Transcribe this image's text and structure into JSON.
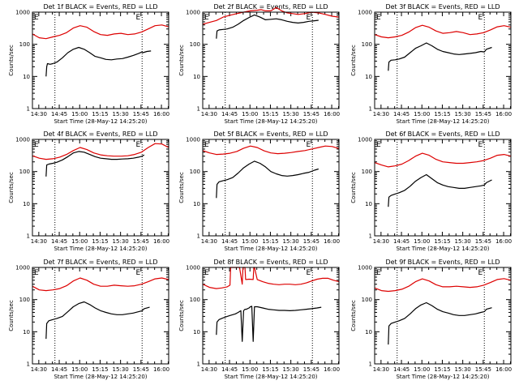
{
  "colors": {
    "events": "#000000",
    "lld": "#dd0000",
    "background": "#ffffff"
  },
  "common": {
    "x_ticks": [
      "14:30",
      "14:45",
      "15:00",
      "15:15",
      "15:30",
      "15:45",
      "16:00"
    ],
    "y_ticks": [
      "1",
      "10",
      "100",
      "1000"
    ],
    "ylabel": "Counts/sec",
    "xlabel": "Start Time (28-May-12 14:25:20)",
    "marker_label": "E"
  },
  "chart_data": [
    {
      "type": "line",
      "title": "Det 1f BLACK = Events, RED = LLD",
      "x_unit": "minutes after 14:25:20",
      "xlim": [
        0,
        100
      ],
      "ylim": [
        1,
        1000
      ],
      "yscale": "log",
      "markers_x": [
        16.5,
        80.5
      ],
      "series": [
        {
          "name": "LLD",
          "color": "#dd0000",
          "x": [
            0,
            5,
            10,
            15,
            20,
            25,
            30,
            35,
            40,
            45,
            50,
            55,
            60,
            65,
            70,
            75,
            80,
            85,
            90,
            95,
            100
          ],
          "y": [
            210,
            160,
            150,
            170,
            190,
            230,
            320,
            380,
            340,
            250,
            200,
            190,
            210,
            220,
            200,
            210,
            240,
            300,
            380,
            400,
            350
          ]
        },
        {
          "name": "Events",
          "color": "#000000",
          "x": [
            10,
            10.5,
            11,
            13,
            15,
            18,
            22,
            26,
            30,
            34,
            38,
            42,
            46,
            50,
            54,
            58,
            62,
            66,
            70,
            74,
            78,
            80.5,
            81,
            84,
            87
          ],
          "y": [
            10,
            20,
            25,
            24,
            25,
            28,
            38,
            55,
            70,
            80,
            70,
            55,
            42,
            38,
            34,
            33,
            35,
            36,
            40,
            45,
            52,
            58,
            55,
            60,
            62
          ]
        }
      ]
    },
    {
      "type": "line",
      "title": "Det 2f BLACK = Events, RED = LLD",
      "x_unit": "minutes after 14:25:20",
      "xlim": [
        0,
        100
      ],
      "ylim": [
        1,
        1000
      ],
      "yscale": "log",
      "markers_x": [
        16.5,
        80.5
      ],
      "series": [
        {
          "name": "LLD",
          "color": "#dd0000",
          "x": [
            0,
            5,
            10,
            15,
            20,
            25,
            30,
            35,
            40,
            43,
            46,
            50,
            54,
            58,
            62,
            66,
            70,
            75,
            80,
            85,
            90,
            95,
            100
          ],
          "y": [
            420,
            480,
            550,
            700,
            800,
            900,
            1000,
            1100,
            1150,
            1200,
            1100,
            1100,
            1400,
            1100,
            950,
            900,
            850,
            900,
            1000,
            950,
            850,
            750,
            700
          ]
        },
        {
          "name": "Events",
          "color": "#000000",
          "x": [
            10,
            10.5,
            12,
            15,
            18,
            22,
            26,
            30,
            34,
            38,
            42,
            46,
            50,
            54,
            58,
            62,
            66,
            70,
            74,
            78,
            82,
            85
          ],
          "y": [
            150,
            260,
            280,
            290,
            300,
            340,
            420,
            550,
            680,
            820,
            700,
            580,
            600,
            620,
            580,
            520,
            480,
            460,
            480,
            520,
            540,
            560
          ]
        }
      ]
    },
    {
      "type": "line",
      "title": "Det 3f BLACK = Events, RED = LLD",
      "x_unit": "minutes after 14:25:20",
      "xlim": [
        0,
        100
      ],
      "ylim": [
        1,
        1000
      ],
      "yscale": "log",
      "markers_x": [
        16.5,
        80.5
      ],
      "series": [
        {
          "name": "LLD",
          "color": "#dd0000",
          "x": [
            0,
            5,
            10,
            15,
            20,
            25,
            30,
            35,
            40,
            45,
            50,
            55,
            60,
            65,
            70,
            75,
            80,
            85,
            90,
            95,
            100
          ],
          "y": [
            200,
            170,
            160,
            170,
            190,
            240,
            330,
            390,
            340,
            260,
            220,
            230,
            250,
            230,
            200,
            210,
            230,
            280,
            350,
            380,
            340
          ]
        },
        {
          "name": "Events",
          "color": "#000000",
          "x": [
            10,
            10.5,
            12,
            15,
            18,
            22,
            26,
            30,
            34,
            38,
            42,
            46,
            50,
            54,
            58,
            62,
            66,
            70,
            74,
            78,
            80.5,
            82,
            86
          ],
          "y": [
            15,
            28,
            32,
            33,
            35,
            40,
            55,
            75,
            90,
            110,
            90,
            70,
            60,
            55,
            50,
            48,
            50,
            52,
            55,
            60,
            58,
            70,
            80
          ]
        }
      ]
    },
    {
      "type": "line",
      "title": "Det 4f BLACK = Events, RED = LLD",
      "x_unit": "minutes after 14:25:20",
      "xlim": [
        0,
        100
      ],
      "ylim": [
        1,
        1000
      ],
      "yscale": "log",
      "markers_x": [
        16.5,
        80.5
      ],
      "series": [
        {
          "name": "LLD",
          "color": "#dd0000",
          "x": [
            0,
            5,
            10,
            15,
            20,
            25,
            30,
            35,
            40,
            45,
            50,
            55,
            60,
            65,
            70,
            75,
            80,
            85,
            90,
            95,
            100
          ],
          "y": [
            310,
            260,
            240,
            250,
            280,
            340,
            450,
            560,
            480,
            380,
            330,
            310,
            300,
            300,
            310,
            340,
            400,
            560,
            740,
            720,
            560
          ]
        },
        {
          "name": "Events",
          "color": "#000000",
          "x": [
            10,
            10.5,
            12,
            15,
            18,
            22,
            26,
            30,
            34,
            38,
            42,
            46,
            50,
            54,
            58,
            62,
            66,
            70,
            74,
            78,
            80.5,
            82
          ],
          "y": [
            70,
            160,
            170,
            180,
            195,
            230,
            290,
            380,
            420,
            400,
            340,
            290,
            260,
            250,
            240,
            240,
            245,
            250,
            260,
            280,
            300,
            330
          ]
        }
      ]
    },
    {
      "type": "line",
      "title": "Det 5f BLACK = Events, RED = LLD",
      "x_unit": "minutes after 14:25:20",
      "xlim": [
        0,
        100
      ],
      "ylim": [
        1,
        1000
      ],
      "yscale": "log",
      "markers_x": [
        16.5,
        80.5
      ],
      "series": [
        {
          "name": "LLD",
          "color": "#dd0000",
          "x": [
            0,
            5,
            10,
            15,
            20,
            25,
            30,
            35,
            40,
            45,
            50,
            55,
            60,
            65,
            70,
            75,
            80,
            85,
            90,
            95,
            100
          ],
          "y": [
            450,
            380,
            340,
            350,
            370,
            420,
            530,
            620,
            560,
            440,
            380,
            360,
            370,
            390,
            420,
            450,
            500,
            560,
            620,
            600,
            520
          ]
        },
        {
          "name": "Events",
          "color": "#000000",
          "x": [
            10,
            10.5,
            12,
            15,
            18,
            22,
            26,
            30,
            34,
            38,
            42,
            46,
            50,
            54,
            58,
            62,
            66,
            70,
            74,
            78,
            82,
            85
          ],
          "y": [
            15,
            40,
            48,
            52,
            56,
            65,
            90,
            130,
            170,
            210,
            180,
            140,
            100,
            85,
            75,
            72,
            75,
            80,
            88,
            95,
            110,
            120
          ]
        }
      ]
    },
    {
      "type": "line",
      "title": "Det 6f BLACK = Events, RED = LLD",
      "x_unit": "minutes after 14:25:20",
      "xlim": [
        0,
        100
      ],
      "ylim": [
        1,
        1000
      ],
      "yscale": "log",
      "markers_x": [
        16.5,
        80.5
      ],
      "series": [
        {
          "name": "LLD",
          "color": "#dd0000",
          "x": [
            0,
            5,
            10,
            15,
            20,
            25,
            30,
            35,
            40,
            45,
            50,
            55,
            60,
            65,
            70,
            75,
            80,
            85,
            90,
            95,
            100
          ],
          "y": [
            190,
            160,
            140,
            150,
            170,
            220,
            300,
            370,
            320,
            240,
            200,
            190,
            180,
            180,
            190,
            200,
            220,
            260,
            320,
            340,
            300
          ]
        },
        {
          "name": "Events",
          "color": "#000000",
          "x": [
            10,
            10.5,
            12,
            15,
            18,
            22,
            26,
            30,
            34,
            38,
            42,
            46,
            50,
            54,
            58,
            62,
            66,
            70,
            74,
            78,
            80.5,
            82,
            86
          ],
          "y": [
            8,
            16,
            18,
            20,
            22,
            26,
            35,
            50,
            65,
            80,
            60,
            45,
            38,
            34,
            32,
            30,
            30,
            32,
            34,
            36,
            38,
            45,
            55
          ]
        }
      ]
    },
    {
      "type": "line",
      "title": "Det 7f BLACK = Events, RED = LLD",
      "x_unit": "minutes after 14:25:20",
      "xlim": [
        0,
        100
      ],
      "ylim": [
        1,
        1000
      ],
      "yscale": "log",
      "markers_x": [
        16.5,
        80.5
      ],
      "series": [
        {
          "name": "LLD",
          "color": "#dd0000",
          "x": [
            0,
            5,
            10,
            15,
            20,
            25,
            30,
            35,
            40,
            45,
            50,
            55,
            60,
            65,
            70,
            75,
            80,
            85,
            90,
            95,
            100
          ],
          "y": [
            260,
            200,
            190,
            200,
            220,
            270,
            380,
            470,
            400,
            300,
            260,
            260,
            280,
            270,
            260,
            270,
            300,
            360,
            440,
            470,
            420
          ]
        },
        {
          "name": "Events",
          "color": "#000000",
          "x": [
            10,
            10.5,
            12,
            15,
            18,
            22,
            26,
            30,
            34,
            38,
            42,
            46,
            50,
            54,
            58,
            62,
            66,
            70,
            74,
            78,
            80.5,
            82,
            86
          ],
          "y": [
            6,
            18,
            22,
            24,
            26,
            30,
            42,
            60,
            75,
            85,
            70,
            55,
            45,
            40,
            36,
            34,
            34,
            36,
            38,
            42,
            45,
            52,
            58
          ]
        }
      ]
    },
    {
      "type": "line",
      "title": "Det 8f BLACK = Events, RED = LLD",
      "x_unit": "minutes after 14:25:20",
      "xlim": [
        0,
        100
      ],
      "ylim": [
        1,
        1000
      ],
      "yscale": "log",
      "markers_x": [
        16.5,
        80.5
      ],
      "series": [
        {
          "name": "LLD",
          "color": "#dd0000",
          "x": [
            0,
            5,
            10,
            14,
            18,
            20,
            20.5,
            21,
            23,
            25,
            27,
            29,
            29.5,
            30,
            31,
            31.5,
            32,
            34,
            37,
            37.5,
            38,
            40,
            44,
            48,
            52,
            56,
            60,
            64,
            68,
            72,
            76,
            80,
            84,
            88,
            92,
            96,
            100
          ],
          "y": [
            300,
            240,
            220,
            230,
            250,
            280,
            1000,
            1000,
            1000,
            1000,
            1000,
            300,
            1000,
            1000,
            1000,
            420,
            420,
            430,
            420,
            1000,
            1000,
            420,
            360,
            320,
            300,
            290,
            300,
            300,
            290,
            300,
            330,
            380,
            430,
            460,
            460,
            400,
            360
          ]
        },
        {
          "name": "Events",
          "color": "#000000",
          "x": [
            10,
            10.5,
            12,
            14,
            16,
            18,
            20,
            22,
            24,
            26,
            28,
            29,
            30,
            31,
            32,
            34,
            35,
            36,
            37,
            38,
            40,
            44,
            48,
            52,
            56,
            60,
            64,
            68,
            72,
            76,
            80,
            84,
            87
          ],
          "y": [
            8,
            20,
            24,
            26,
            28,
            30,
            32,
            34,
            36,
            40,
            45,
            5,
            45,
            50,
            50,
            55,
            60,
            62,
            5,
            60,
            60,
            55,
            50,
            48,
            46,
            46,
            45,
            46,
            48,
            50,
            52,
            55,
            58
          ]
        }
      ]
    },
    {
      "type": "line",
      "title": "Det 9f BLACK = Events, RED = LLD",
      "x_unit": "minutes after 14:25:20",
      "xlim": [
        0,
        100
      ],
      "ylim": [
        1,
        1000
      ],
      "yscale": "log",
      "markers_x": [
        16.5,
        80.5
      ],
      "series": [
        {
          "name": "LLD",
          "color": "#dd0000",
          "x": [
            0,
            5,
            10,
            15,
            20,
            25,
            30,
            35,
            40,
            45,
            50,
            55,
            60,
            65,
            70,
            75,
            80,
            85,
            90,
            95,
            100
          ],
          "y": [
            230,
            190,
            180,
            190,
            210,
            260,
            360,
            440,
            380,
            290,
            250,
            250,
            260,
            250,
            240,
            250,
            280,
            340,
            420,
            450,
            400
          ]
        },
        {
          "name": "Events",
          "color": "#000000",
          "x": [
            10,
            10.5,
            12,
            15,
            18,
            22,
            26,
            30,
            34,
            38,
            42,
            46,
            50,
            54,
            58,
            62,
            66,
            70,
            74,
            78,
            80.5,
            82,
            86
          ],
          "y": [
            4,
            15,
            18,
            20,
            22,
            26,
            36,
            52,
            68,
            80,
            65,
            50,
            42,
            38,
            34,
            32,
            32,
            34,
            36,
            40,
            42,
            50,
            56
          ]
        }
      ]
    }
  ]
}
